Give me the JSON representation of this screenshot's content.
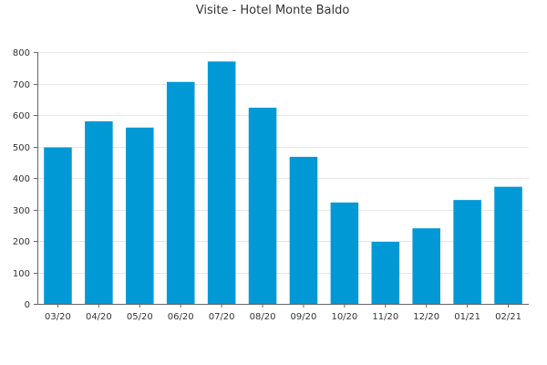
{
  "chart_data": {
    "type": "bar",
    "title": "Visite - Hotel Monte Baldo",
    "xlabel": "",
    "ylabel": "",
    "categories": [
      "03/20",
      "04/20",
      "05/20",
      "06/20",
      "07/20",
      "08/20",
      "09/20",
      "10/20",
      "11/20",
      "12/20",
      "01/21",
      "02/21"
    ],
    "values": [
      497,
      580,
      560,
      705,
      770,
      623,
      467,
      322,
      197,
      240,
      330,
      372
    ],
    "ylim": [
      0,
      800
    ],
    "yticks": [
      0,
      100,
      200,
      300,
      400,
      500,
      600,
      700,
      800
    ],
    "grid": true,
    "legend": "none",
    "colors": {
      "bar": "#0099d6",
      "grid": "#e6e6e6",
      "axis": "#666666",
      "text": "#333333"
    }
  }
}
